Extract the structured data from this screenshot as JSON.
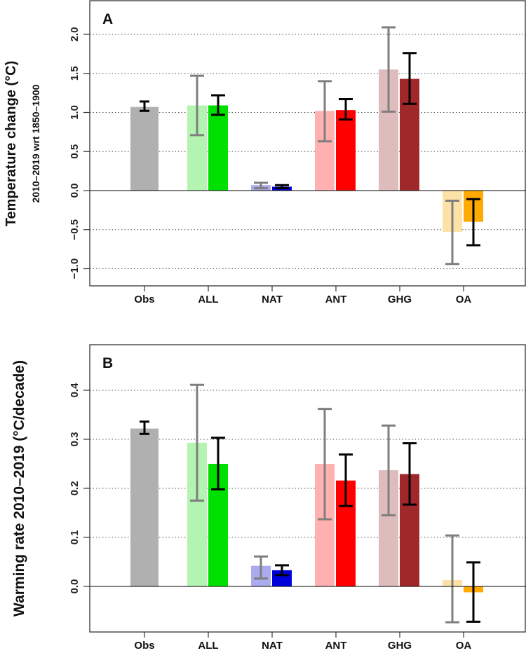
{
  "chart_data": [
    {
      "type": "bar",
      "panel_label": "A",
      "ylabel": "Temperature change (°C)",
      "ylabel_sub": "2010–2019  wrt  1850–1900",
      "ylim": [
        -1.2,
        2.4
      ],
      "yticks": [
        "−1.0",
        "−0.5",
        "0.0",
        "0.5",
        "1.0",
        "1.5",
        "2.0"
      ],
      "ytick_values": [
        -1.0,
        -0.5,
        0.0,
        0.5,
        1.0,
        1.5,
        2.0
      ],
      "grid": "horizontal dotted",
      "categories": [
        "Obs",
        "ALL",
        "NAT",
        "ANT",
        "GHG",
        "OA"
      ],
      "bars": [
        {
          "category": "Obs",
          "kind": "obs",
          "value": 1.07,
          "low": 1.02,
          "high": 1.14,
          "color": "#b0b0b0"
        },
        {
          "category": "ALL",
          "kind": "light",
          "value": 1.09,
          "low": 0.71,
          "high": 1.47,
          "color": "#b3f5b0"
        },
        {
          "category": "ALL",
          "kind": "dark",
          "value": 1.09,
          "low": 0.97,
          "high": 1.22,
          "color": "#00e000"
        },
        {
          "category": "NAT",
          "kind": "light",
          "value": 0.07,
          "low": 0.03,
          "high": 0.1,
          "color": "#aaaaee"
        },
        {
          "category": "NAT",
          "kind": "dark",
          "value": 0.05,
          "low": 0.03,
          "high": 0.07,
          "color": "#0000dd"
        },
        {
          "category": "ANT",
          "kind": "light",
          "value": 1.02,
          "low": 0.63,
          "high": 1.4,
          "color": "#ffb0b0"
        },
        {
          "category": "ANT",
          "kind": "dark",
          "value": 1.03,
          "low": 0.91,
          "high": 1.17,
          "color": "#ff0000"
        },
        {
          "category": "GHG",
          "kind": "light",
          "value": 1.55,
          "low": 1.01,
          "high": 2.09,
          "color": "#dfbcbc"
        },
        {
          "category": "GHG",
          "kind": "dark",
          "value": 1.43,
          "low": 1.11,
          "high": 1.76,
          "color": "#a0282a"
        },
        {
          "category": "OA",
          "kind": "light",
          "value": -0.53,
          "low": -0.94,
          "high": -0.13,
          "color": "#fde2a8"
        },
        {
          "category": "OA",
          "kind": "dark",
          "value": -0.4,
          "low": -0.7,
          "high": -0.11,
          "color": "#ffaa00"
        }
      ]
    },
    {
      "type": "bar",
      "panel_label": "B",
      "ylabel": "Warming rate 2010–2019 (°C/decade)",
      "ylim": [
        -0.095,
        0.49
      ],
      "yticks": [
        "0.0",
        "0.1",
        "0.2",
        "0.3",
        "0.4"
      ],
      "ytick_values": [
        0.0,
        0.1,
        0.2,
        0.3,
        0.4
      ],
      "grid": "horizontal dotted",
      "categories": [
        "Obs",
        "ALL",
        "NAT",
        "ANT",
        "GHG",
        "OA"
      ],
      "bars": [
        {
          "category": "Obs",
          "kind": "obs",
          "value": 0.322,
          "low": 0.311,
          "high": 0.336,
          "color": "#b0b0b0"
        },
        {
          "category": "ALL",
          "kind": "light",
          "value": 0.293,
          "low": 0.175,
          "high": 0.411,
          "color": "#b3f5b0"
        },
        {
          "category": "ALL",
          "kind": "dark",
          "value": 0.25,
          "low": 0.198,
          "high": 0.303,
          "color": "#00e000"
        },
        {
          "category": "NAT",
          "kind": "light",
          "value": 0.042,
          "low": 0.016,
          "high": 0.061,
          "color": "#aaaaee"
        },
        {
          "category": "NAT",
          "kind": "dark",
          "value": 0.033,
          "low": 0.023,
          "high": 0.043,
          "color": "#0000dd"
        },
        {
          "category": "ANT",
          "kind": "light",
          "value": 0.25,
          "low": 0.137,
          "high": 0.362,
          "color": "#ffb0b0"
        },
        {
          "category": "ANT",
          "kind": "dark",
          "value": 0.216,
          "low": 0.164,
          "high": 0.269,
          "color": "#ff0000"
        },
        {
          "category": "GHG",
          "kind": "light",
          "value": 0.237,
          "low": 0.145,
          "high": 0.328,
          "color": "#dfbcbc"
        },
        {
          "category": "GHG",
          "kind": "dark",
          "value": 0.229,
          "low": 0.167,
          "high": 0.292,
          "color": "#a0282a"
        },
        {
          "category": "OA",
          "kind": "light",
          "value": 0.013,
          "low": -0.073,
          "high": 0.104,
          "color": "#fde2a8"
        },
        {
          "category": "OA",
          "kind": "dark",
          "value": -0.012,
          "low": -0.072,
          "high": 0.049,
          "color": "#ffaa00"
        }
      ]
    }
  ]
}
